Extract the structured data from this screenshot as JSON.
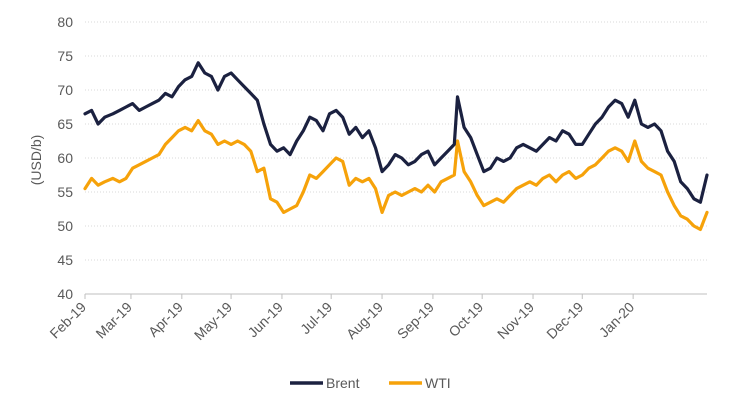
{
  "chart_data": {
    "type": "line",
    "title": "",
    "xlabel": "",
    "ylabel": "(USD/b)",
    "ylim": [
      40,
      80
    ],
    "yticks": [
      40,
      45,
      50,
      55,
      60,
      65,
      70,
      75,
      80
    ],
    "grid": true,
    "legend": "bottom-center",
    "categories": [
      "Feb-19",
      "Mar-19",
      "Apr-19",
      "May-19",
      "Jun-19",
      "Jul-19",
      "Aug-19",
      "Sep-19",
      "Oct-19",
      "Nov-19",
      "Dec-19",
      "Jan-20"
    ],
    "x": [
      "2019-02-01",
      "2019-02-05",
      "2019-02-09",
      "2019-02-13",
      "2019-02-18",
      "2019-02-22",
      "2019-02-26",
      "2019-03-02",
      "2019-03-06",
      "2019-03-10",
      "2019-03-14",
      "2019-03-18",
      "2019-03-22",
      "2019-03-26",
      "2019-03-30",
      "2019-04-03",
      "2019-04-07",
      "2019-04-11",
      "2019-04-15",
      "2019-04-19",
      "2019-04-23",
      "2019-04-27",
      "2019-05-01",
      "2019-05-05",
      "2019-05-09",
      "2019-05-13",
      "2019-05-17",
      "2019-05-21",
      "2019-05-25",
      "2019-05-29",
      "2019-06-02",
      "2019-06-06",
      "2019-06-10",
      "2019-06-14",
      "2019-06-18",
      "2019-06-22",
      "2019-06-26",
      "2019-06-30",
      "2019-07-04",
      "2019-07-08",
      "2019-07-12",
      "2019-07-16",
      "2019-07-20",
      "2019-07-24",
      "2019-07-28",
      "2019-08-01",
      "2019-08-05",
      "2019-08-09",
      "2019-08-13",
      "2019-08-17",
      "2019-08-21",
      "2019-08-25",
      "2019-08-29",
      "2019-09-02",
      "2019-09-06",
      "2019-09-10",
      "2019-09-14",
      "2019-09-16",
      "2019-09-20",
      "2019-09-24",
      "2019-09-28",
      "2019-10-02",
      "2019-10-06",
      "2019-10-10",
      "2019-10-14",
      "2019-10-18",
      "2019-10-22",
      "2019-10-26",
      "2019-10-30",
      "2019-11-03",
      "2019-11-07",
      "2019-11-11",
      "2019-11-15",
      "2019-11-19",
      "2019-11-23",
      "2019-11-27",
      "2019-12-01",
      "2019-12-05",
      "2019-12-09",
      "2019-12-13",
      "2019-12-17",
      "2019-12-21",
      "2019-12-25",
      "2019-12-29",
      "2020-01-02",
      "2020-01-06",
      "2020-01-10",
      "2020-01-14",
      "2020-01-18",
      "2020-01-22",
      "2020-01-26",
      "2020-01-30",
      "2020-02-03",
      "2020-02-07",
      "2020-02-11",
      "2020-02-15"
    ],
    "series": [
      {
        "name": "Brent",
        "color": "#1b2140",
        "values": [
          66.5,
          67.0,
          65.0,
          66.0,
          66.5,
          67.0,
          67.5,
          68.0,
          67.0,
          67.5,
          68.0,
          68.5,
          69.5,
          69.0,
          70.5,
          71.5,
          72.0,
          74.0,
          72.5,
          72.0,
          70.0,
          72.0,
          72.5,
          71.5,
          70.5,
          69.5,
          68.5,
          65.0,
          62.0,
          61.0,
          61.5,
          60.5,
          62.5,
          64.0,
          66.0,
          65.5,
          64.0,
          66.5,
          67.0,
          66.0,
          63.5,
          64.5,
          63.0,
          64.0,
          61.5,
          58.0,
          59.0,
          60.5,
          60.0,
          59.0,
          59.5,
          60.5,
          61.0,
          59.0,
          60.0,
          61.0,
          62.0,
          69.0,
          64.5,
          63.0,
          60.5,
          58.0,
          58.5,
          60.0,
          59.5,
          60.0,
          61.5,
          62.0,
          61.5,
          61.0,
          62.0,
          63.0,
          62.5,
          64.0,
          63.5,
          62.0,
          62.0,
          63.5,
          65.0,
          66.0,
          67.5,
          68.5,
          68.0,
          66.0,
          68.5,
          65.0,
          64.5,
          65.0,
          64.0,
          61.0,
          59.5,
          56.5,
          55.5,
          54.0,
          53.5,
          57.5
        ]
      },
      {
        "name": "WTI",
        "color": "#f6a20a",
        "values": [
          55.5,
          57.0,
          56.0,
          56.5,
          57.0,
          56.5,
          57.0,
          58.5,
          59.0,
          59.5,
          60.0,
          60.5,
          62.0,
          63.0,
          64.0,
          64.5,
          64.0,
          65.5,
          64.0,
          63.5,
          62.0,
          62.5,
          62.0,
          62.5,
          62.0,
          61.0,
          58.0,
          58.5,
          54.0,
          53.5,
          52.0,
          52.5,
          53.0,
          55.0,
          57.5,
          57.0,
          58.0,
          59.0,
          60.0,
          59.5,
          56.0,
          57.0,
          56.5,
          57.0,
          55.5,
          52.0,
          54.5,
          55.0,
          54.5,
          55.0,
          55.5,
          55.0,
          56.0,
          55.0,
          56.5,
          57.0,
          57.5,
          62.5,
          58.0,
          56.5,
          54.5,
          53.0,
          53.5,
          54.0,
          53.5,
          54.5,
          55.5,
          56.0,
          56.5,
          56.0,
          57.0,
          57.5,
          56.5,
          57.5,
          58.0,
          57.0,
          57.5,
          58.5,
          59.0,
          60.0,
          61.0,
          61.5,
          61.0,
          59.5,
          62.5,
          59.5,
          58.5,
          58.0,
          57.5,
          55.0,
          53.0,
          51.5,
          51.0,
          50.0,
          49.5,
          52.0
        ]
      }
    ]
  }
}
